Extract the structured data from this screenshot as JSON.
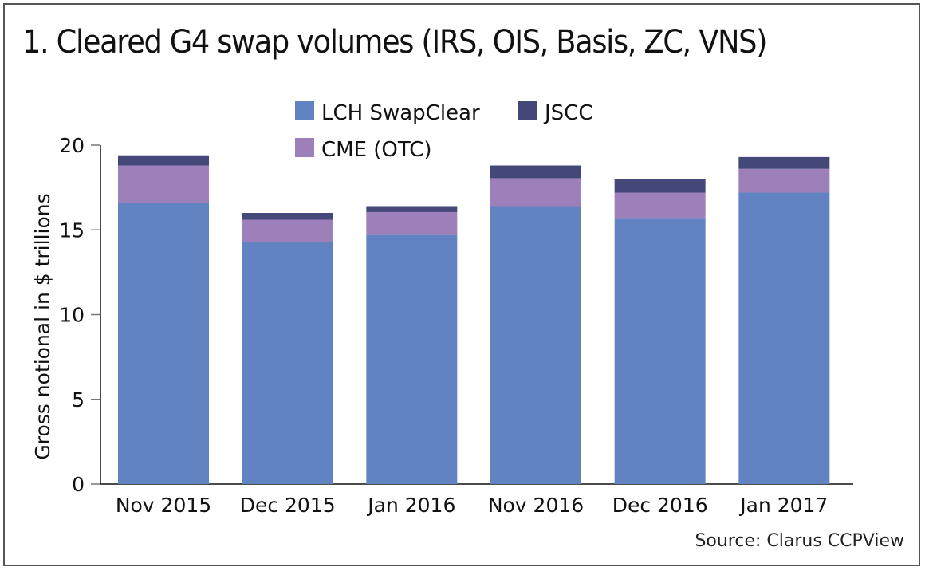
{
  "chart_data": {
    "type": "bar",
    "stacked": true,
    "title": "1. Cleared G4 swap volumes (IRS, OIS, Basis, ZC, VNS)",
    "xlabel": "",
    "ylabel": "Gross notional in $ trillions",
    "ylim": [
      0,
      20
    ],
    "yticks": [
      0,
      5,
      10,
      15,
      20
    ],
    "grid": false,
    "legend_position": "top",
    "categories": [
      "Nov 2015",
      "Dec 2015",
      "Jan 2016",
      "Nov 2016",
      "Dec 2016",
      "Jan 2017"
    ],
    "series": [
      {
        "name": "LCH SwapClear",
        "color": "#6283c2",
        "values": [
          16.6,
          14.3,
          14.7,
          16.4,
          15.7,
          17.2
        ]
      },
      {
        "name": "CME (OTC)",
        "color": "#9d7fba",
        "values": [
          2.2,
          1.3,
          1.35,
          1.65,
          1.5,
          1.4
        ]
      },
      {
        "name": "JSCC",
        "color": "#434879",
        "values": [
          0.6,
          0.4,
          0.35,
          0.75,
          0.8,
          0.7
        ]
      }
    ],
    "source": "Source: Clarus CCPView"
  }
}
